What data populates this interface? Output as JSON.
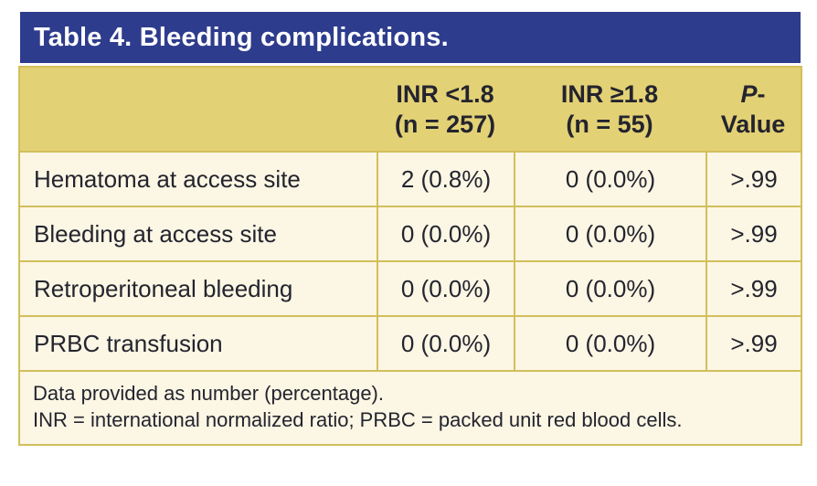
{
  "title": "Table 4. Bleeding complications.",
  "colors": {
    "title_bar": "#2e3c8d",
    "header_bg": "#e3d175",
    "body_bg": "#fcf6e4",
    "border": "#d2bf5c",
    "text": "#23242e",
    "title_text": "#ffffff"
  },
  "table": {
    "columns": [
      {
        "line1": "",
        "line2": ""
      },
      {
        "line1": "INR <1.8",
        "line2": "(n = 257)"
      },
      {
        "line1": "INR ≥1.8",
        "line2": "(n = 55)"
      },
      {
        "line1_italic": "P",
        "line1_rest": "-",
        "line2": "Value"
      }
    ],
    "rows": [
      {
        "label": "Hematoma at access site",
        "values": [
          "2 (0.8%)",
          "0 (0.0%)",
          ">.99"
        ]
      },
      {
        "label": "Bleeding at access site",
        "values": [
          "0 (0.0%)",
          "0 (0.0%)",
          ">.99"
        ]
      },
      {
        "label": "Retroperitoneal bleeding",
        "values": [
          "0 (0.0%)",
          "0 (0.0%)",
          ">.99"
        ]
      },
      {
        "label": "PRBC transfusion",
        "values": [
          "0 (0.0%)",
          "0 (0.0%)",
          ">.99"
        ]
      }
    ],
    "footnotes": [
      "Data provided as number (percentage).",
      "INR = international normalized ratio; PRBC = packed unit red blood cells."
    ]
  }
}
